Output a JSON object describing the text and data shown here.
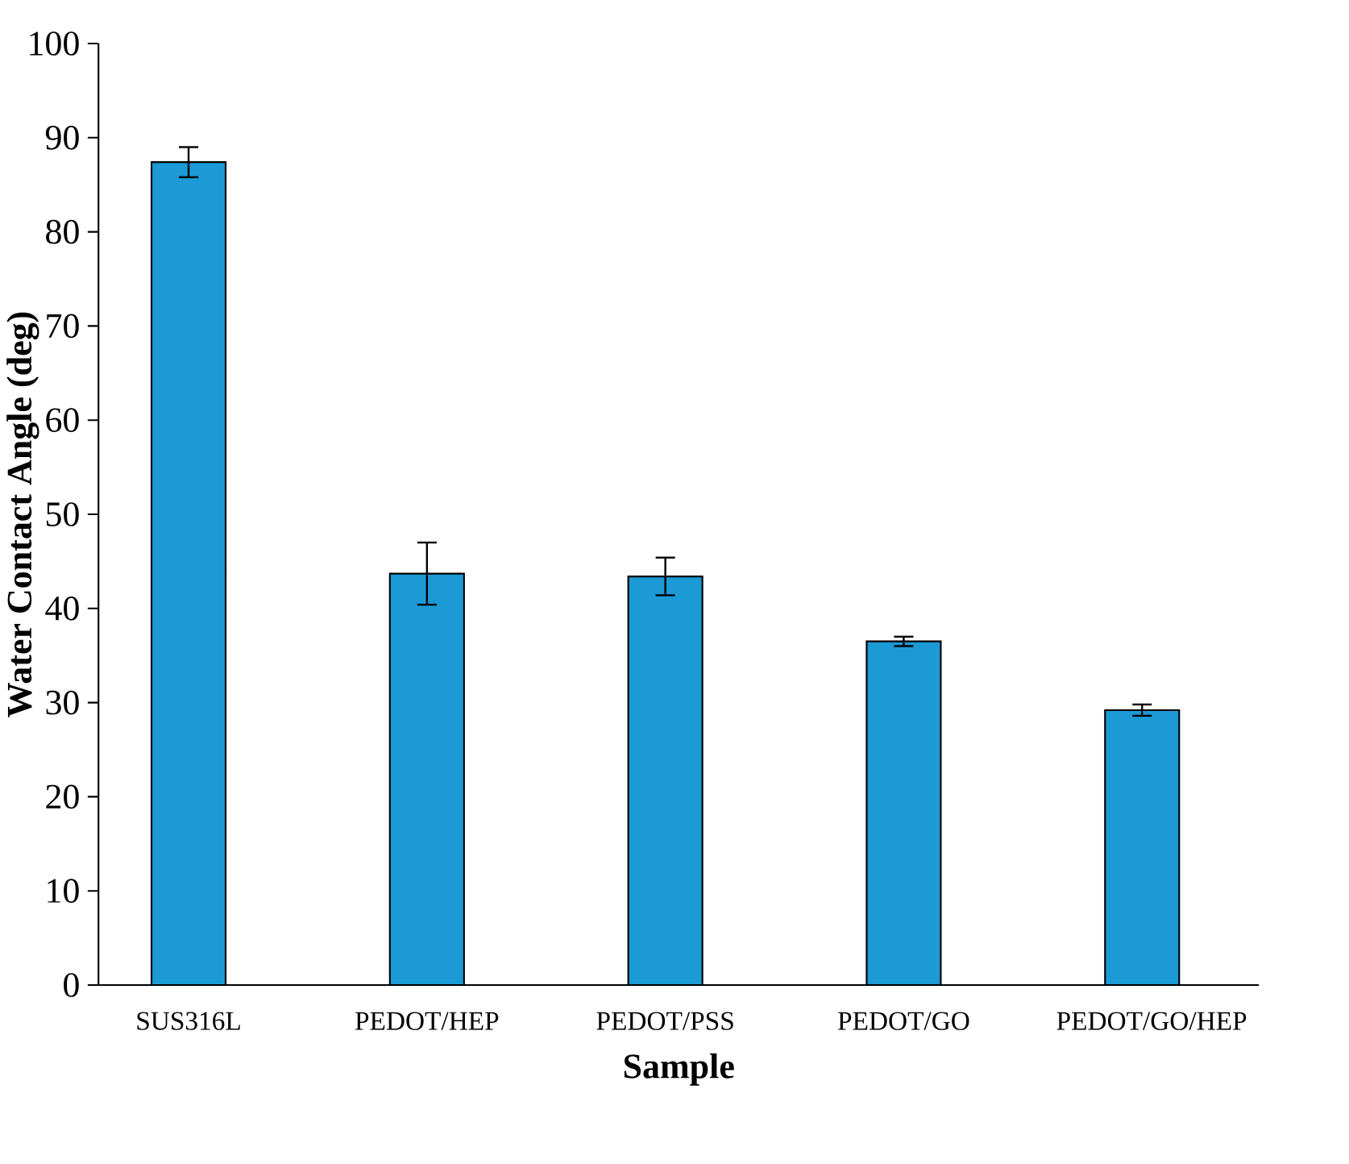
{
  "chart_data": {
    "type": "bar",
    "xlabel": "Sample",
    "ylabel": "Water Contact Angle (deg)",
    "categories": [
      "SUS316L",
      "PEDOT/HEP",
      "PEDOT/PSS",
      "PEDOT/GO",
      "PEDOT/GO/HEP"
    ],
    "values": [
      87.4,
      43.7,
      43.4,
      36.5,
      29.2
    ],
    "errors": [
      1.6,
      3.3,
      2.0,
      0.5,
      0.6
    ],
    "color": "#1b9ad6",
    "ylim": [
      0,
      100
    ],
    "yticks": [
      0,
      10,
      20,
      30,
      40,
      50,
      60,
      70,
      80,
      90,
      100
    ],
    "grid": false
  }
}
